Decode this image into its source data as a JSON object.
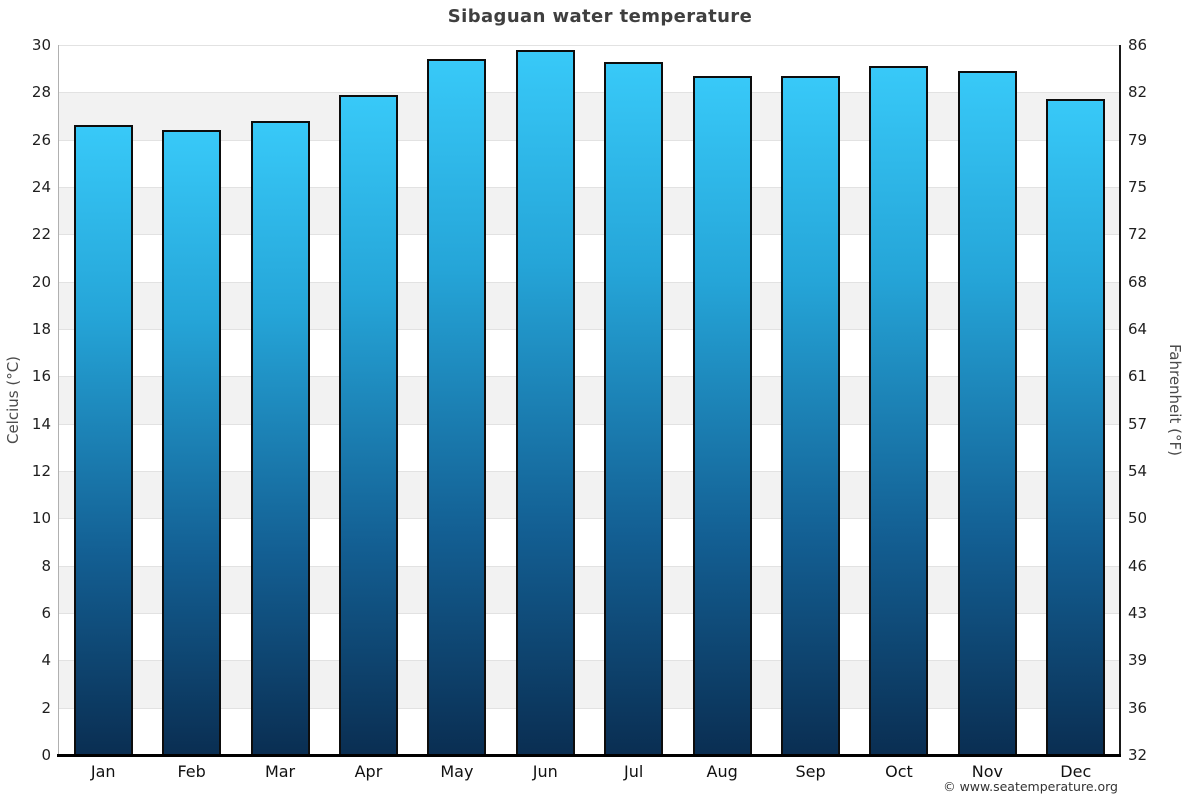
{
  "header": {
    "title": "Sibaguan water temperature"
  },
  "footer": {
    "copyright": "© www.seatemperature.org"
  },
  "chart_data": {
    "type": "bar",
    "title": "Sibaguan water temperature",
    "categories": [
      "Jan",
      "Feb",
      "Mar",
      "Apr",
      "May",
      "Jun",
      "Jul",
      "Aug",
      "Sep",
      "Oct",
      "Nov",
      "Dec"
    ],
    "values": [
      26.6,
      26.4,
      26.8,
      27.9,
      29.4,
      29.8,
      29.3,
      28.7,
      28.7,
      29.1,
      28.9,
      27.7
    ],
    "unit": "°C",
    "xlabel": "",
    "ylabel_left": "Celcius (°C)",
    "ylabel_right": "Fahrenheit (°F)",
    "ylim": [
      0,
      30
    ],
    "ytick_step": 2,
    "yticks_celsius": [
      0,
      2,
      4,
      6,
      8,
      10,
      12,
      14,
      16,
      18,
      20,
      22,
      24,
      26,
      28,
      30
    ],
    "yticks_fahrenheit": [
      32,
      36,
      39,
      43,
      46,
      50,
      54,
      57,
      61,
      64,
      68,
      72,
      75,
      79,
      82,
      86
    ],
    "legend": "none",
    "grid": "horizontal gridlines every 2°C with alternating shaded bands",
    "colors": {
      "bar_top": "#38c9f8",
      "bar_upper_mid": "#25a5d8",
      "bar_lower_mid": "#135f93",
      "bar_bottom": "#0a2e52",
      "bar_border": "#0d0d0d",
      "band_shade": "#f2f2f2",
      "gridline": "#e2e2e2",
      "axis_left": "#b0b0b0",
      "axis_right": "#1a1a1a",
      "axis_bottom": "#000000",
      "title_color": "#3f3f3f",
      "tick_color": "#1f1f1f",
      "axis_title_color": "#4a4a4a"
    }
  }
}
